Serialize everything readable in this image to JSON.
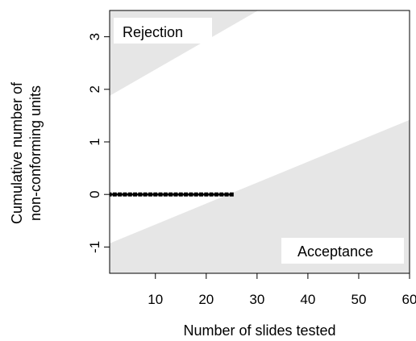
{
  "chart_data": {
    "type": "line",
    "xlabel": "Number of slides tested",
    "ylabel_lines": [
      "Cumulative number of",
      "non-conforming units"
    ],
    "xlim": [
      1,
      60
    ],
    "ylim": [
      -1.5,
      3.5
    ],
    "x_ticks": [
      10,
      20,
      30,
      40,
      50,
      60
    ],
    "y_ticks": [
      -1,
      0,
      1,
      2,
      3
    ],
    "grid": false,
    "regions": [
      {
        "label": "Rejection",
        "boundary": {
          "slope": 0.0556,
          "intercept": 1.82
        },
        "side": "above",
        "fill": "#e6e6e6"
      },
      {
        "label": "Acceptance",
        "boundary": {
          "slope": 0.0398,
          "intercept": -0.97
        },
        "side": "below",
        "fill": "#e6e6e6"
      }
    ],
    "series": [
      {
        "x": [
          1,
          2,
          3,
          4,
          5,
          6,
          7,
          8,
          9,
          10,
          11,
          12,
          13,
          14,
          15,
          16,
          17,
          18,
          19,
          20,
          21,
          22,
          23,
          24,
          25
        ],
        "y": [
          0,
          0,
          0,
          0,
          0,
          0,
          0,
          0,
          0,
          0,
          0,
          0,
          0,
          0,
          0,
          0,
          0,
          0,
          0,
          0,
          0,
          0,
          0,
          0,
          0
        ],
        "color": "#000000",
        "marker": "square"
      }
    ]
  }
}
